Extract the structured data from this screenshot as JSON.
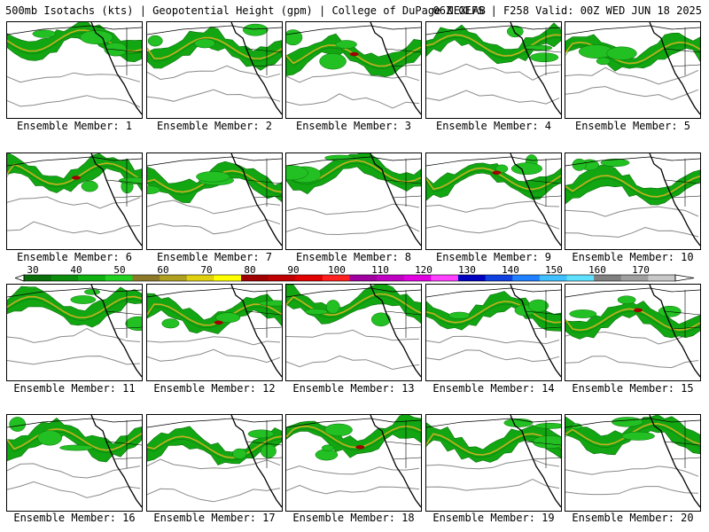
{
  "header": {
    "left": "500mb Isotachs (kts) | Geopotential Height (gpm) | College of DuPage NEXLAB",
    "right": "06Z GEFS | F258 Valid: 00Z WED JUN 18 2025"
  },
  "members": [
    "Ensemble Member: 1",
    "Ensemble Member: 2",
    "Ensemble Member: 3",
    "Ensemble Member: 4",
    "Ensemble Member: 5",
    "Ensemble Member: 6",
    "Ensemble Member: 7",
    "Ensemble Member: 8",
    "Ensemble Member: 9",
    "Ensemble Member: 10",
    "Ensemble Member: 11",
    "Ensemble Member: 12",
    "Ensemble Member: 13",
    "Ensemble Member: 14",
    "Ensemble Member: 15",
    "Ensemble Member: 16",
    "Ensemble Member: 17",
    "Ensemble Member: 18",
    "Ensemble Member: 19",
    "Ensemble Member: 20"
  ],
  "colorbar": {
    "labels": [
      "30",
      "40",
      "50",
      "60",
      "70",
      "80",
      "90",
      "100",
      "110",
      "120",
      "130",
      "140",
      "150",
      "160",
      "170"
    ],
    "colors": [
      "#0a6e0a",
      "#0c8c0c",
      "#10b010",
      "#22d022",
      "#8c7a2a",
      "#b0a020",
      "#e0d010",
      "#ffff00",
      "#a00000",
      "#c00000",
      "#e00000",
      "#ff2020",
      "#a000a0",
      "#c000c0",
      "#e000e0",
      "#ff40ff",
      "#0000c0",
      "#1040e0",
      "#2080ff",
      "#40c0ff",
      "#60e0ff",
      "#808080",
      "#a0a0a0",
      "#c8c8c8"
    ]
  }
}
